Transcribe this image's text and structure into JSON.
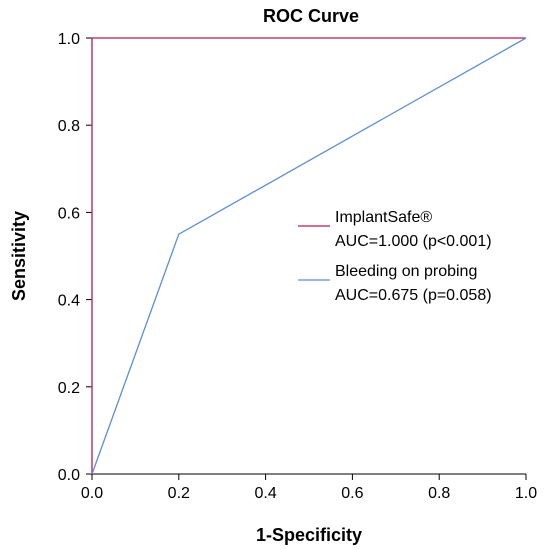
{
  "chart_data": {
    "type": "line",
    "title": "ROC Curve",
    "xlabel": "1-Specificity",
    "ylabel": "Sensitivity",
    "xlim": [
      0,
      1
    ],
    "ylim": [
      0,
      1
    ],
    "xticks": [
      "0.0",
      "0.2",
      "0.4",
      "0.6",
      "0.8",
      "1.0"
    ],
    "yticks": [
      "0.0",
      "0.2",
      "0.4",
      "0.6",
      "0.8",
      "1.0"
    ],
    "grid": false,
    "legend_position": "right-middle",
    "series": [
      {
        "name": "ImplantSafe®",
        "legend_line2": "AUC=1.000 (p<0.001)",
        "color": "#c0174a",
        "x": [
          0.0,
          0.0,
          1.0
        ],
        "y": [
          0.0,
          1.0,
          1.0
        ]
      },
      {
        "name": "Bleeding on probing",
        "legend_line2": "AUC=0.675 (p=0.058)",
        "color": "#5b8fd6",
        "x": [
          0.0,
          0.2,
          1.0
        ],
        "y": [
          0.0,
          0.55,
          1.0
        ]
      }
    ]
  }
}
